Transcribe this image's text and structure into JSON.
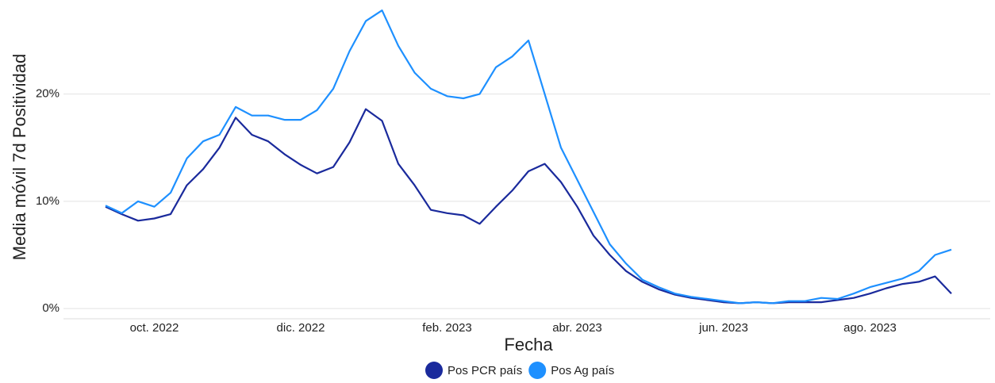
{
  "chart_data": {
    "type": "line",
    "xlabel": "Fecha",
    "ylabel": "Media móvil 7d Positividad",
    "categories": [
      null,
      null,
      null,
      "oct. 2022",
      null,
      null,
      null,
      null,
      null,
      null,
      null,
      null,
      "dic. 2022",
      null,
      null,
      null,
      null,
      null,
      null,
      null,
      null,
      "feb. 2023",
      null,
      null,
      null,
      null,
      null,
      null,
      null,
      "abr. 2023",
      null,
      null,
      null,
      null,
      null,
      null,
      null,
      null,
      "jun. 2023",
      null,
      null,
      null,
      null,
      null,
      null,
      null,
      null,
      "ago. 2023",
      null,
      null,
      null,
      null,
      null
    ],
    "series": [
      {
        "name": "Pos PCR país",
        "color": "#1a2a9c",
        "values": [
          9.5,
          8.8,
          8.2,
          8.4,
          8.8,
          11.5,
          13.0,
          15.0,
          17.8,
          16.2,
          15.6,
          14.4,
          13.4,
          12.6,
          13.2,
          15.5,
          18.6,
          17.5,
          13.5,
          11.5,
          9.2,
          8.9,
          8.7,
          7.9,
          9.5,
          11.0,
          12.8,
          13.5,
          11.8,
          9.5,
          6.8,
          5.0,
          3.5,
          2.5,
          1.8,
          1.3,
          1.0,
          0.8,
          0.6,
          0.5,
          0.6,
          0.5,
          0.6,
          0.6,
          0.6,
          0.8,
          1.0,
          1.4,
          1.9,
          2.3,
          2.5,
          3.0,
          1.4
        ]
      },
      {
        "name": "Pos Ag país",
        "color": "#1e90ff",
        "values": [
          9.6,
          8.9,
          10.0,
          9.5,
          10.8,
          14.0,
          15.6,
          16.2,
          18.8,
          18.0,
          18.0,
          17.6,
          17.6,
          18.5,
          20.5,
          24.0,
          26.8,
          27.8,
          24.5,
          22.0,
          20.5,
          19.8,
          19.6,
          20.0,
          22.5,
          23.5,
          25.0,
          20.0,
          15.0,
          12.0,
          9.0,
          6.0,
          4.2,
          2.7,
          2.0,
          1.4,
          1.1,
          0.9,
          0.7,
          0.5,
          0.6,
          0.5,
          0.7,
          0.7,
          1.0,
          0.9,
          1.4,
          2.0,
          2.4,
          2.8,
          3.5,
          5.0,
          5.5
        ]
      }
    ],
    "ylim": [
      -0.8,
      28.4
    ],
    "yticks": [
      {
        "value": 0,
        "label": "0%"
      },
      {
        "value": 10,
        "label": "10%"
      },
      {
        "value": 20,
        "label": "20%"
      }
    ],
    "grid": true
  }
}
